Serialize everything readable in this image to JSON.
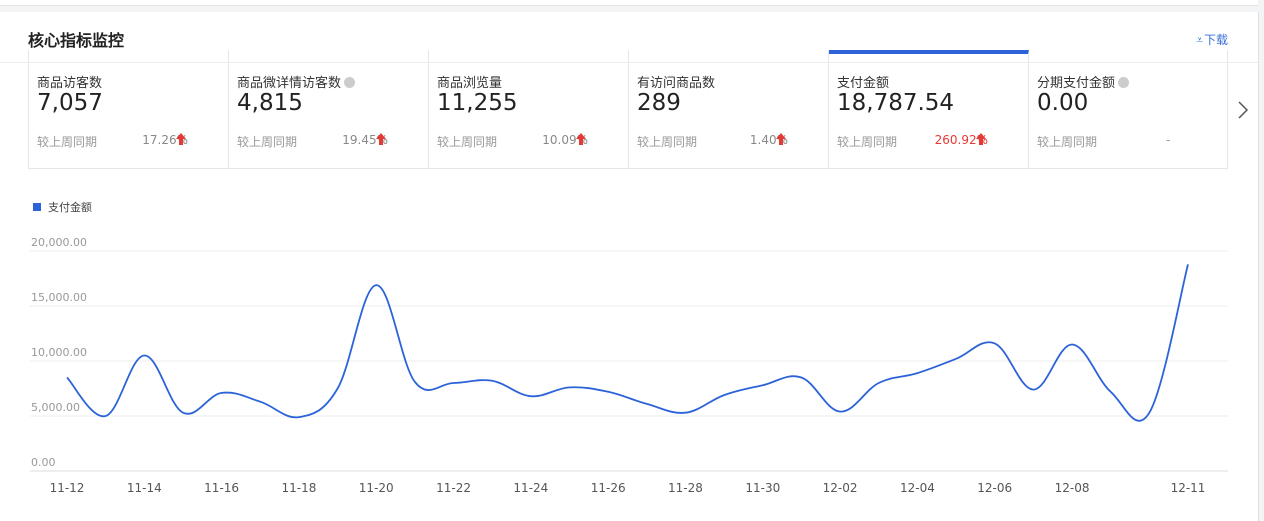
{
  "panel": {
    "title": "核心指标监控",
    "download_label": "下载",
    "download_icon": "download-icon"
  },
  "metrics": [
    {
      "label": "商品访客数",
      "value": "7,057",
      "compare_label": "较上周同期",
      "change": "17.26%",
      "trend": "up",
      "help": false,
      "active": false
    },
    {
      "label": "商品微详情访客数",
      "value": "4,815",
      "compare_label": "较上周同期",
      "change": "19.45%",
      "trend": "up",
      "help": true,
      "active": false
    },
    {
      "label": "商品浏览量",
      "value": "11,255",
      "compare_label": "较上周同期",
      "change": "10.09%",
      "trend": "up",
      "help": false,
      "active": false
    },
    {
      "label": "有访问商品数",
      "value": "289",
      "compare_label": "较上周同期",
      "change": "1.40%",
      "trend": "up",
      "help": false,
      "active": false
    },
    {
      "label": "支付金额",
      "value": "18,787.54",
      "compare_label": "较上周同期",
      "change": "260.92%",
      "trend": "up",
      "help": false,
      "active": true
    },
    {
      "label": "分期支付金额",
      "value": "0.00",
      "compare_label": "较上周同期",
      "change": "-",
      "trend": "none",
      "help": true,
      "active": false
    }
  ],
  "colors": {
    "accent": "#2c63d9",
    "up_arrow": "#e53935"
  },
  "chart_data": {
    "type": "line",
    "legend": [
      "支付金额"
    ],
    "legend_position": "top-left",
    "grid": true,
    "x": [
      "11-12",
      "11-13",
      "11-14",
      "11-15",
      "11-16",
      "11-17",
      "11-18",
      "11-19",
      "11-20",
      "11-21",
      "11-22",
      "11-23",
      "11-24",
      "11-25",
      "11-26",
      "11-27",
      "11-28",
      "11-29",
      "11-30",
      "12-01",
      "12-02",
      "12-03",
      "12-04",
      "12-05",
      "12-06",
      "12-07",
      "12-08",
      "12-09",
      "12-10",
      "12-11"
    ],
    "x_tick_labels": [
      "11-12",
      "11-14",
      "11-16",
      "11-18",
      "11-20",
      "11-22",
      "11-24",
      "11-26",
      "11-28",
      "11-30",
      "12-02",
      "12-04",
      "12-06",
      "12-08",
      "12-11"
    ],
    "y_tick_labels": [
      "0.00",
      "5,000.00",
      "10,000.00",
      "15,000.00",
      "20,000.00"
    ],
    "ylim": [
      0,
      20000
    ],
    "series": [
      {
        "name": "支付金额",
        "color": "#2c63d9",
        "values": [
          8500,
          5000,
          10500,
          5300,
          7100,
          6300,
          4900,
          7500,
          16900,
          8100,
          8000,
          8200,
          6800,
          7600,
          7200,
          6100,
          5300,
          6900,
          7800,
          8500,
          5400,
          8000,
          8900,
          10200,
          11600,
          7400,
          11500,
          7200,
          5300,
          18787.54
        ]
      }
    ]
  }
}
